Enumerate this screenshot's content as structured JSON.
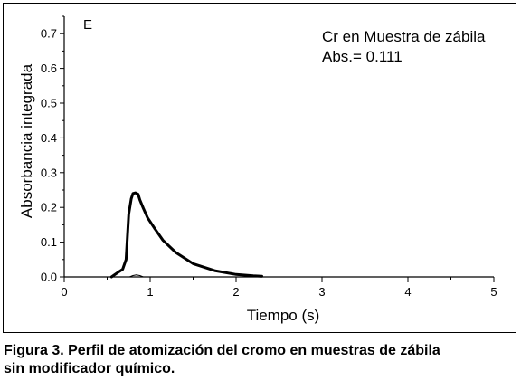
{
  "chart_data": {
    "type": "line",
    "panel_label": "E",
    "annotation": {
      "line1": "Cr en Muestra de zábila",
      "line2": "Abs.= 0.111"
    },
    "xlabel": "Tiempo (s)",
    "ylabel": "Absorbancia integrada",
    "xlim": [
      0,
      5
    ],
    "ylim": [
      0,
      0.75
    ],
    "x_ticks": [
      "0",
      "1",
      "2",
      "3",
      "4",
      "5"
    ],
    "y_ticks": [
      "0.0",
      "0.1",
      "0.2",
      "0.3",
      "0.4",
      "0.5",
      "0.6",
      "0.7"
    ],
    "grid": false,
    "series": [
      {
        "style": "thick",
        "x": [
          0.55,
          0.62,
          0.68,
          0.72,
          0.75,
          0.78,
          0.8,
          0.83,
          0.86,
          0.88,
          0.92,
          0.97,
          1.05,
          1.15,
          1.3,
          1.5,
          1.75,
          2.0,
          2.2,
          2.3
        ],
        "y": [
          0.0,
          0.012,
          0.022,
          0.05,
          0.18,
          0.225,
          0.24,
          0.242,
          0.238,
          0.222,
          0.198,
          0.17,
          0.14,
          0.105,
          0.07,
          0.038,
          0.018,
          0.007,
          0.003,
          0.002
        ]
      },
      {
        "style": "thin",
        "x": [
          0.76,
          0.8,
          0.84,
          0.88,
          0.92
        ],
        "y": [
          0.0,
          0.004,
          0.006,
          0.004,
          0.0
        ]
      }
    ]
  },
  "caption": {
    "line1": "Figura 3. Perfil de atomización del cromo en muestras de zábila",
    "line2": "sin modificador químico."
  }
}
